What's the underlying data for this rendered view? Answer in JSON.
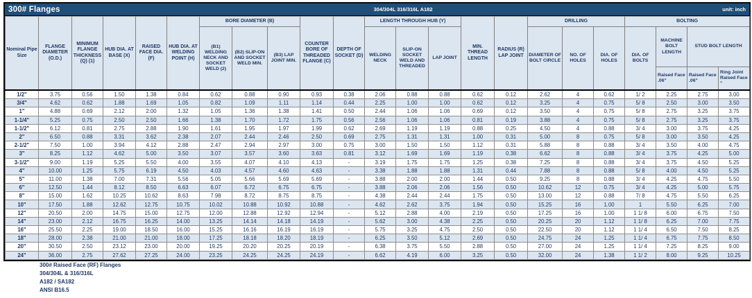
{
  "title_bar": {
    "title": "300# Flanges",
    "material": "304/304L 316/316L A182",
    "unit": "unit: inch"
  },
  "colors": {
    "title_bar_bg": "#1F4E79",
    "header_bg": "#DCE6F1",
    "stripe_bg": "#DCE6F1",
    "text_navy": "#1F3864"
  },
  "groups": {
    "bore": "BORE DIAMETER (B)",
    "length_hub": "LENGTH THROUGH HUB (Y)",
    "drilling": "DRILLING",
    "bolting": "BOLTING"
  },
  "header": {
    "nominal": "Nominal Pipe Size",
    "od": "FLANGE DIAMETER (O.D.)",
    "q": "MINIMUM FLANGE THICKNESS (Q) (1)",
    "x": "HUB DIA. AT BASE (X)",
    "f": "RAISED FACE DIA. (F)",
    "h": "HUB DIA. AT WELDING POINT (H)",
    "b1": "(B1) WELDING NECK AND SOCKET WELD (2)",
    "b2": "(B2) SLIP-ON AND SOCKET WELD MIN.",
    "b3": "(B3) LAP JOINT MIN.",
    "c": "COUNTER BORE OF THREADED FLANGE (C)",
    "d": "DEPTH OF SOCKET (D)",
    "welding_neck": "WELDING NECK",
    "slip_on": "SLIP-ON SOCKET WELD AND THREADED",
    "lap_joint": "LAP JOINT",
    "min_thread": "MIN. THREAD LENGTH",
    "radius": "RADIUS (R) LAP JOINT",
    "bolt_circle": "DIAMETER OF BOLT CIRCLE",
    "no_holes": "NO. OF HOLES",
    "dia_holes": "DIA. OF HOLES",
    "dia_bolts": "DIA. OF BOLTS",
    "machine_bolt": "MACHINE BOLT LENGTH",
    "stud_bolt": "STUD BOLT LENGTH",
    "rf_machine": "Raised Face .06\"",
    "rf_stud": "Raised Face .06\"",
    "ring_joint": "Ring Joint Raised Face \""
  },
  "table": {
    "rows": [
      [
        "1/2\"",
        "3.75",
        "0.56",
        "1.50",
        "1.38",
        "0.84",
        "0.62",
        "0.88",
        "0.90",
        "0.93",
        "0.38",
        "2.06",
        "0.88",
        "0.88",
        "0.62",
        "0.12",
        "2.62",
        "4",
        "0.62",
        "1/ 2",
        "2.25",
        "2.75",
        "3.00"
      ],
      [
        "3/4\"",
        "4.62",
        "0.62",
        "1.88",
        "1.69",
        "1.05",
        "0.82",
        "1.09",
        "1.11",
        "1.14",
        "0.44",
        "2.25",
        "1.00",
        "1.00",
        "0.62",
        "0.12",
        "3.25",
        "4",
        "0.75",
        "5/ 8",
        "2.50",
        "3.00",
        "3.50"
      ],
      [
        "1\"",
        "4.88",
        "0.69",
        "2.12",
        "2.00",
        "1.32",
        "1.05",
        "1.36",
        "1.38",
        "1.41",
        "0.50",
        "2.44",
        "1.06",
        "1.06",
        "0.69",
        "0.12",
        "3.50",
        "4",
        "0.75",
        "5/ 8",
        "2.75",
        "3.25",
        "3.75"
      ],
      [
        "1-1/4\"",
        "5.25",
        "0.75",
        "2.50",
        "2.50",
        "1.66",
        "1.38",
        "1.70",
        "1.72",
        "1.75",
        "0.56",
        "2.56",
        "1.06",
        "1.06",
        "0.81",
        "0.19",
        "3.88",
        "4",
        "0.75",
        "5/ 8",
        "2.75",
        "3.25",
        "3.75"
      ],
      [
        "1-1/2\"",
        "6.12",
        "0.81",
        "2.75",
        "2.88",
        "1.90",
        "1.61",
        "1.95",
        "1.97",
        "1.99",
        "0.62",
        "2.69",
        "1.19",
        "1.19",
        "0.88",
        "0.25",
        "4.50",
        "4",
        "0.88",
        "3/ 4",
        "3.00",
        "3.75",
        "4.25"
      ],
      [
        "2\"",
        "6.50",
        "0.88",
        "3.31",
        "3.62",
        "2.38",
        "2.07",
        "2.44",
        "2.46",
        "2.50",
        "0.69",
        "2.75",
        "1.31",
        "1.31",
        "1.00",
        "0.31",
        "5.00",
        "8",
        "0.75",
        "5/ 8",
        "3.00",
        "3.50",
        "4.25"
      ],
      [
        "2-1/2\"",
        "7.50",
        "1.00",
        "3.94",
        "4.12",
        "2.88",
        "2.47",
        "2.94",
        "2.97",
        "3.00",
        "0.75",
        "3.00",
        "1.50",
        "1.50",
        "1.12",
        "0.31",
        "5.88",
        "8",
        "0.88",
        "3/ 4",
        "3.50",
        "4.00",
        "4.75"
      ],
      [
        "3\"",
        "8.25",
        "1.12",
        "4.62",
        "5.00",
        "3.50",
        "3.07",
        "3.57",
        "3.60",
        "3.63",
        "0.81",
        "3.12",
        "1.69",
        "1.69",
        "1.19",
        "0.38",
        "6.62",
        "8",
        "0.88",
        "3/ 4",
        "3.75",
        "4.25",
        "5.00"
      ],
      [
        "3-1/2\"",
        "9.00",
        "1.19",
        "5.25",
        "5.50",
        "4.00",
        "3.55",
        "4.07",
        "4.10",
        "4.13",
        "-",
        "3.19",
        "1.75",
        "1.75",
        "1.25",
        "0.38",
        "7.25",
        "8",
        "0.88",
        "3/ 4",
        "3.75",
        "4.50",
        "5.25"
      ],
      [
        "4\"",
        "10.00",
        "1.25",
        "5.75",
        "6.19",
        "4.50",
        "4.03",
        "4.57",
        "4.60",
        "4.63",
        "-",
        "3.38",
        "1.88",
        "1.88",
        "1.31",
        "0.44",
        "7.88",
        "8",
        "0.88",
        "5/ 8",
        "4.00",
        "4.50",
        "5.25"
      ],
      [
        "5\"",
        "11.00",
        "1.38",
        "7.00",
        "7.31",
        "5.56",
        "5.05",
        "5.66",
        "5.69",
        "5.69",
        "-",
        "3.88",
        "2.00",
        "2.00",
        "1.44",
        "0.50",
        "9.25",
        "8",
        "0.88",
        "3/ 4",
        "4.25",
        "4.75",
        "5.50"
      ],
      [
        "6\"",
        "12.50",
        "1.44",
        "8.12",
        "8.50",
        "6.63",
        "6.07",
        "6.72",
        "6.75",
        "6.75",
        "-",
        "3.88",
        "2.06",
        "2.06",
        "1.56",
        "0.50",
        "10.62",
        "12",
        "0.75",
        "3/ 4",
        "4.25",
        "5.00",
        "5.75"
      ],
      [
        "8\"",
        "15.00",
        "1.62",
        "10.25",
        "10.62",
        "8.63",
        "7.98",
        "8.72",
        "8.75",
        "8.75",
        "-",
        "4.38",
        "2.44",
        "2.44",
        "1.75",
        "0.50",
        "13.00",
        "12",
        "0.88",
        "7/ 8",
        "4.75",
        "5.50",
        "6.25"
      ],
      [
        "10\"",
        "17.50",
        "1.88",
        "12.62",
        "12.75",
        "10.75",
        "10.02",
        "10.88",
        "10.92",
        "10.88",
        "-",
        "4.62",
        "2.62",
        "3.75",
        "1.94",
        "0.50",
        "15.25",
        "16",
        "1.00",
        "1",
        "5.50",
        "6.25",
        "7.00"
      ],
      [
        "12\"",
        "20.50",
        "2.00",
        "14.75",
        "15.00",
        "12.75",
        "12.00",
        "12.88",
        "12.92",
        "12.94",
        "-",
        "5.12",
        "2.88",
        "4.00",
        "2.19",
        "0.50",
        "17.25",
        "16",
        "1.00",
        "1 1/ 8",
        "6.00",
        "6.75",
        "7.50"
      ],
      [
        "14\"",
        "23.00",
        "2.12",
        "16.75",
        "16.25",
        "14.00",
        "13.25",
        "14.14",
        "14.18",
        "14.19",
        "-",
        "5.62",
        "3.00",
        "4.38",
        "2.25",
        "0.50",
        "20.25",
        "20",
        "1.12",
        "1 1/ 8",
        "6.25",
        "7.00",
        "7.75"
      ],
      [
        "16\"",
        "25.50",
        "2.25",
        "19.00",
        "18.50",
        "16.00",
        "15.25",
        "16.16",
        "16.19",
        "16.19",
        "-",
        "5.75",
        "3.25",
        "4.75",
        "2.50",
        "0.50",
        "22.50",
        "20",
        "1.12",
        "1 1/ 4",
        "6.50",
        "7.50",
        "8.25"
      ],
      [
        "18\"",
        "28.00",
        "2.38",
        "21.00",
        "21.00",
        "18.00",
        "17.25",
        "18.18",
        "18.20",
        "18.19",
        "-",
        "6.25",
        "3.50",
        "5.12",
        "2.69",
        "0.50",
        "24.75",
        "24",
        "1.25",
        "1 1/ 4",
        "6.75",
        "7.75",
        "8.50"
      ],
      [
        "20\"",
        "30.50",
        "2.50",
        "23.12",
        "23.00",
        "20.00",
        "19.25",
        "20.20",
        "20.25",
        "20.19",
        "-",
        "6.38",
        "3.75",
        "5.50",
        "2.88",
        "0.50",
        "27.00",
        "24",
        "1.25",
        "1 1/ 4",
        "7.25",
        "8.25",
        "9.00"
      ],
      [
        "24\"",
        "36.00",
        "2.75",
        "27.62",
        "27.25",
        "24.00",
        "23.25",
        "24.25",
        "24.25",
        "24.19",
        "-",
        "6.62",
        "4.19",
        "6.00",
        "3.25",
        "0.50",
        "32.00",
        "24",
        "1.38",
        "1 1/ 2",
        "8.00",
        "9.25",
        "10.25"
      ]
    ]
  },
  "notes": {
    "line1": "300# Raised Face (RF) Flanges",
    "line2": "304/304L & 316/316L",
    "line3": "A182 / SA182",
    "line4": "ANSI B16.5"
  }
}
